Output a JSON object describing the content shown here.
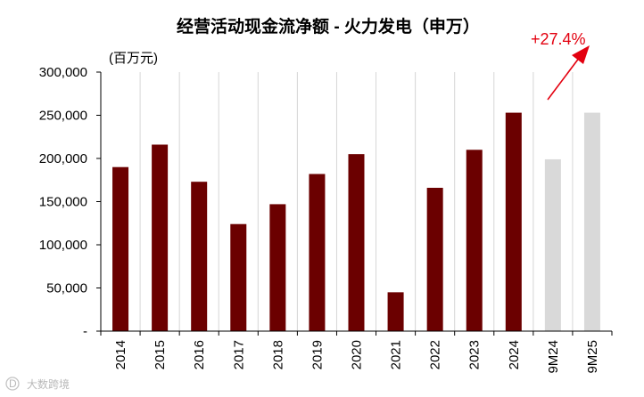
{
  "chart_data": {
    "type": "bar",
    "title": "经营活动现金流净额 - 火力发电（申万）",
    "unit_label": "(百万元)",
    "categories": [
      "2014",
      "2015",
      "2016",
      "2017",
      "2018",
      "2019",
      "2020",
      "2021",
      "2022",
      "2023",
      "2024",
      "9M24",
      "9M25"
    ],
    "values": [
      190000,
      216000,
      173000,
      124000,
      147000,
      182000,
      205000,
      45000,
      166000,
      210000,
      253000,
      199000,
      253000
    ],
    "bar_colors": [
      "#6b0000",
      "#6b0000",
      "#6b0000",
      "#6b0000",
      "#6b0000",
      "#6b0000",
      "#6b0000",
      "#6b0000",
      "#6b0000",
      "#6b0000",
      "#6b0000",
      "#d9d9d9",
      "#d9d9d9"
    ],
    "ylim": [
      0,
      300000
    ],
    "yticks": [
      0,
      50000,
      100000,
      150000,
      200000,
      250000,
      300000
    ],
    "ytick_labels": [
      "-",
      "50,000",
      "100,000",
      "150,000",
      "200,000",
      "250,000",
      "300,000"
    ],
    "grid": "vertical separators between categories",
    "annotation": {
      "text": "+27.4%",
      "color": "#e3000f"
    }
  },
  "watermark": {
    "text": "大数跨境",
    "logo_text": "D"
  }
}
